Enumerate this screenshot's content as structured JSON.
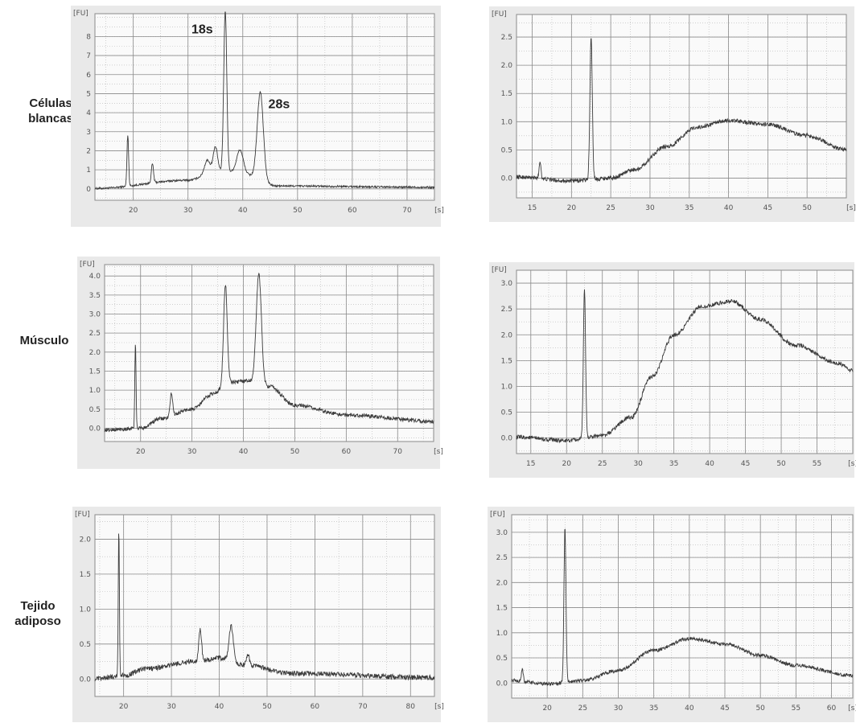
{
  "row_labels": [
    "Células\nblancas",
    "Músculo",
    "Tejido\nadiposo"
  ],
  "y_unit": "[FU]",
  "x_unit": "[s]",
  "colors": {
    "panel_bg": "#e9e9e9",
    "plot_bg": "#fafafa",
    "grid": "#8a8a8a",
    "trace": "#3a3a3a"
  },
  "chart_data": [
    {
      "type": "line",
      "row": 0,
      "col": 0,
      "xlim": [
        13,
        75
      ],
      "ylim": [
        -0.6,
        9.2
      ],
      "xticks": [
        20,
        30,
        40,
        50,
        60,
        70
      ],
      "yticks": [
        0,
        1,
        2,
        3,
        4,
        5,
        6,
        7,
        8
      ],
      "baseline": [
        [
          13,
          0.02
        ],
        [
          30,
          0.45
        ],
        [
          35,
          0.9
        ],
        [
          38,
          0.9
        ],
        [
          42,
          0.7
        ],
        [
          46,
          0.15
        ],
        [
          75,
          0.08
        ]
      ],
      "peaks": [
        [
          19,
          2.7,
          0.15
        ],
        [
          23.5,
          1.0,
          0.2
        ],
        [
          33.5,
          0.7,
          0.5
        ],
        [
          35,
          1.3,
          0.4
        ],
        [
          36.8,
          8.5,
          0.28
        ],
        [
          39.5,
          1.2,
          0.6
        ],
        [
          43.2,
          4.5,
          0.55
        ]
      ],
      "noise": 0.05,
      "annotations": [
        {
          "text": "18s",
          "x": 36.8,
          "y": 8.5
        },
        {
          "text": "28s",
          "x": 43.2,
          "y": 4.5
        }
      ],
      "grid": true
    },
    {
      "type": "line",
      "row": 0,
      "col": 1,
      "xlim": [
        13,
        55
      ],
      "ylim": [
        -0.35,
        2.9
      ],
      "xticks": [
        15,
        20,
        25,
        30,
        35,
        40,
        45,
        50
      ],
      "yticks": [
        0.0,
        0.5,
        1.0,
        1.5,
        2.0,
        2.5
      ],
      "baseline": [
        [
          13,
          0.02
        ],
        [
          20,
          -0.05
        ],
        [
          25,
          0.0
        ],
        [
          28,
          0.15
        ],
        [
          32,
          0.55
        ],
        [
          36,
          0.9
        ],
        [
          40,
          1.02
        ],
        [
          45,
          0.95
        ],
        [
          50,
          0.75
        ],
        [
          55,
          0.5
        ]
      ],
      "peaks": [
        [
          16,
          0.3,
          0.12
        ],
        [
          22.5,
          2.55,
          0.15
        ]
      ],
      "noise": 0.035,
      "annotations": [],
      "grid": true
    },
    {
      "type": "line",
      "row": 1,
      "col": 0,
      "xlim": [
        13,
        77
      ],
      "ylim": [
        -0.35,
        4.3
      ],
      "xticks": [
        20,
        30,
        40,
        50,
        60,
        70
      ],
      "yticks": [
        0.0,
        0.5,
        1.0,
        1.5,
        2.0,
        2.5,
        3.0,
        3.5,
        4.0
      ],
      "baseline": [
        [
          13,
          -0.05
        ],
        [
          20,
          0.0
        ],
        [
          24,
          0.25
        ],
        [
          30,
          0.5
        ],
        [
          34,
          0.9
        ],
        [
          37,
          1.2
        ],
        [
          41,
          1.25
        ],
        [
          45,
          1.1
        ],
        [
          50,
          0.6
        ],
        [
          60,
          0.35
        ],
        [
          77,
          0.18
        ]
      ],
      "peaks": [
        [
          19,
          2.2,
          0.12
        ],
        [
          26,
          0.6,
          0.25
        ],
        [
          36.5,
          2.6,
          0.35
        ],
        [
          43,
          2.9,
          0.5
        ]
      ],
      "noise": 0.05,
      "annotations": [],
      "grid": true
    },
    {
      "type": "line",
      "row": 1,
      "col": 1,
      "xlim": [
        13,
        60
      ],
      "ylim": [
        -0.3,
        3.25
      ],
      "xticks": [
        15,
        20,
        25,
        30,
        35,
        40,
        45,
        50,
        55
      ],
      "yticks": [
        0.0,
        0.5,
        1.0,
        1.5,
        2.0,
        2.5,
        3.0
      ],
      "baseline": [
        [
          13,
          0.02
        ],
        [
          20,
          -0.05
        ],
        [
          25,
          0.05
        ],
        [
          29,
          0.4
        ],
        [
          32,
          1.2
        ],
        [
          35,
          2.0
        ],
        [
          39,
          2.55
        ],
        [
          43,
          2.65
        ],
        [
          47,
          2.3
        ],
        [
          52,
          1.8
        ],
        [
          58,
          1.45
        ],
        [
          60,
          1.3
        ]
      ],
      "peaks": [
        [
          22.5,
          2.9,
          0.15
        ]
      ],
      "noise": 0.04,
      "annotations": [],
      "grid": true
    },
    {
      "type": "line",
      "row": 2,
      "col": 0,
      "xlim": [
        14,
        85
      ],
      "ylim": [
        -0.25,
        2.35
      ],
      "xticks": [
        20,
        30,
        40,
        50,
        60,
        70,
        80
      ],
      "yticks": [
        0.0,
        0.5,
        1.0,
        1.5,
        2.0
      ],
      "baseline": [
        [
          14,
          0.0
        ],
        [
          20,
          0.05
        ],
        [
          25,
          0.15
        ],
        [
          35,
          0.25
        ],
        [
          40,
          0.3
        ],
        [
          45,
          0.2
        ],
        [
          55,
          0.08
        ],
        [
          85,
          0.02
        ]
      ],
      "peaks": [
        [
          19,
          2.1,
          0.12
        ],
        [
          36,
          0.45,
          0.3
        ],
        [
          42.5,
          0.5,
          0.45
        ],
        [
          46,
          0.15,
          0.3
        ]
      ],
      "noise": 0.035,
      "annotations": [],
      "grid": true
    },
    {
      "type": "line",
      "row": 2,
      "col": 1,
      "xlim": [
        15,
        63
      ],
      "ylim": [
        -0.3,
        3.35
      ],
      "xticks": [
        20,
        25,
        30,
        35,
        40,
        45,
        50,
        55,
        60
      ],
      "yticks": [
        0.0,
        0.5,
        1.0,
        1.5,
        2.0,
        2.5,
        3.0
      ],
      "baseline": [
        [
          15,
          0.05
        ],
        [
          20,
          -0.02
        ],
        [
          25,
          0.05
        ],
        [
          30,
          0.25
        ],
        [
          35,
          0.65
        ],
        [
          40,
          0.88
        ],
        [
          45,
          0.78
        ],
        [
          50,
          0.55
        ],
        [
          55,
          0.35
        ],
        [
          63,
          0.15
        ]
      ],
      "peaks": [
        [
          16.5,
          0.25,
          0.12
        ],
        [
          22.5,
          3.1,
          0.14
        ]
      ],
      "noise": 0.035,
      "annotations": [],
      "grid": true
    }
  ]
}
